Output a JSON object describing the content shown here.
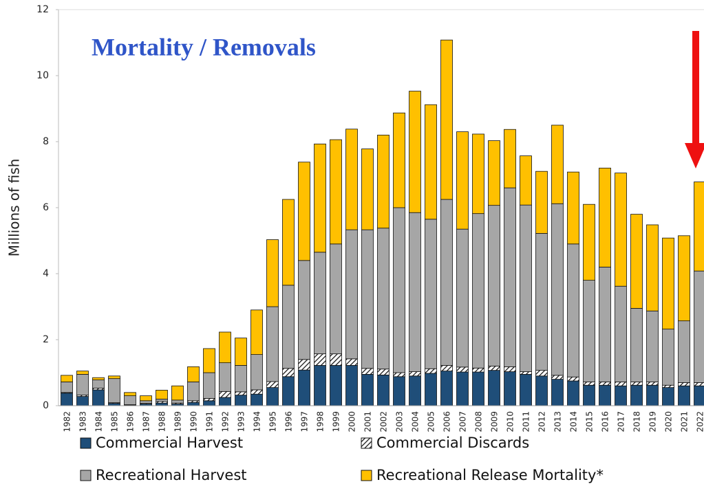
{
  "chart_data": {
    "type": "stacked_bar",
    "title": "Mortality / Removals",
    "y_label": "Millions of fish",
    "categories": [
      "1982",
      "1983",
      "1984",
      "1985",
      "1986",
      "1987",
      "1988",
      "1989",
      "1990",
      "1991",
      "1992",
      "1993",
      "1994",
      "1995",
      "1996",
      "1997",
      "1998",
      "1999",
      "2000",
      "2001",
      "2002",
      "2003",
      "2004",
      "2005",
      "2006",
      "2007",
      "2008",
      "2009",
      "2010",
      "2011",
      "2012",
      "2013",
      "2014",
      "2015",
      "2016",
      "2017",
      "2018",
      "2019",
      "2020",
      "2021",
      "2022"
    ],
    "series": [
      {
        "name": "Commercial Harvest",
        "color": "#1f4e79",
        "values": [
          0.38,
          0.28,
          0.48,
          0.07,
          0.02,
          0.05,
          0.08,
          0.05,
          0.1,
          0.15,
          0.25,
          0.32,
          0.35,
          0.55,
          0.88,
          1.08,
          1.22,
          1.22,
          1.22,
          0.95,
          0.93,
          0.88,
          0.9,
          0.98,
          1.05,
          1.02,
          1.02,
          1.07,
          1.03,
          0.95,
          0.9,
          0.8,
          0.75,
          0.62,
          0.62,
          0.6,
          0.62,
          0.62,
          0.55,
          0.6,
          0.6
        ]
      },
      {
        "name": "Commercial Discards",
        "color": "#ffffff",
        "pattern": "hatch",
        "values": [
          0.02,
          0.04,
          0.05,
          0.02,
          0.01,
          0.02,
          0.05,
          0.03,
          0.05,
          0.07,
          0.18,
          0.1,
          0.13,
          0.18,
          0.25,
          0.32,
          0.35,
          0.35,
          0.2,
          0.18,
          0.18,
          0.12,
          0.13,
          0.14,
          0.17,
          0.15,
          0.12,
          0.13,
          0.15,
          0.08,
          0.17,
          0.12,
          0.12,
          0.1,
          0.1,
          0.12,
          0.1,
          0.1,
          0.07,
          0.1,
          0.1
        ]
      },
      {
        "name": "Recreational Harvest",
        "color": "#a6a6a6",
        "values": [
          0.32,
          0.63,
          0.25,
          0.73,
          0.27,
          0.08,
          0.07,
          0.09,
          0.57,
          0.78,
          0.87,
          0.8,
          1.07,
          2.27,
          2.52,
          3.0,
          3.08,
          3.33,
          3.91,
          4.2,
          4.27,
          5.0,
          4.82,
          4.53,
          5.03,
          4.18,
          4.68,
          4.87,
          5.42,
          5.05,
          4.15,
          5.2,
          4.03,
          3.08,
          3.48,
          2.9,
          2.23,
          2.15,
          1.7,
          1.87,
          3.38
        ]
      },
      {
        "name": "Recreational Release Mortality*",
        "color": "#ffc000",
        "values": [
          0.2,
          0.1,
          0.07,
          0.08,
          0.1,
          0.15,
          0.27,
          0.43,
          0.46,
          0.73,
          0.93,
          0.83,
          1.35,
          2.03,
          2.6,
          2.98,
          3.28,
          3.16,
          3.05,
          2.45,
          2.82,
          2.87,
          3.68,
          3.47,
          4.83,
          2.95,
          2.41,
          1.96,
          1.77,
          1.49,
          1.88,
          2.38,
          2.18,
          2.3,
          3.0,
          3.43,
          2.85,
          2.61,
          2.76,
          2.58,
          2.7
        ]
      }
    ],
    "ylim": [
      0,
      12
    ],
    "yticks": [
      0,
      2,
      4,
      6,
      8,
      10,
      12
    ],
    "grid": false
  }
}
